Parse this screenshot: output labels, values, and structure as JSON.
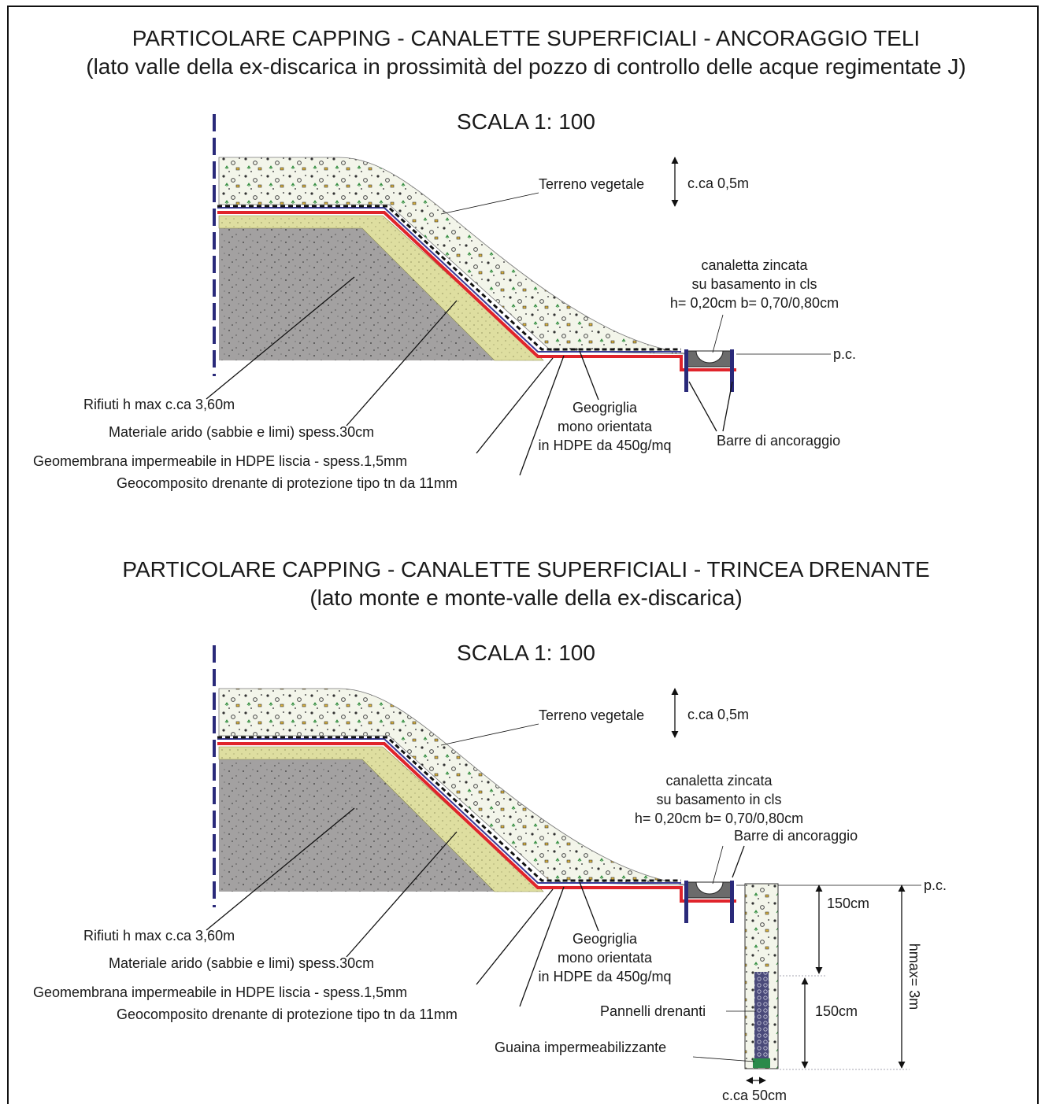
{
  "sections": [
    {
      "title": "PARTICOLARE CAPPING - CANALETTE SUPERFICIALI - ANCORAGGIO TELI",
      "subtitle": "(lato valle della ex-discarica in prossimità del pozzo di controllo delle acque regimentate J)",
      "scale": "SCALA 1: 100",
      "topsoil": "Terreno vegetale",
      "topsoil_thickness": "c.ca 0,5m",
      "channel": [
        "canaletta zincata",
        "su basamento in cls",
        "h= 0,20cm b= 0,70/0,80cm"
      ],
      "ground_level": "p.c.",
      "waste": "Rifiuti h max c.ca 3,60m",
      "sand": "Materiale arido (sabbie e limi) spess.30cm",
      "geomembrane": "Geomembrana impermeabile in HDPE liscia - spess.1,5mm",
      "geocomposite": "Geocomposito drenante di protezione tipo tn da 11mm",
      "geogrid": [
        "Geogriglia",
        "mono orientata",
        "in HDPE da 450g/mq"
      ],
      "anchor_bars": "Barre di ancoraggio"
    },
    {
      "title": "PARTICOLARE CAPPING - CANALETTE SUPERFICIALI - TRINCEA DRENANTE",
      "subtitle": "(lato monte e monte-valle della ex-discarica)",
      "scale": "SCALA 1: 100",
      "topsoil": "Terreno vegetale",
      "topsoil_thickness": "c.ca 0,5m",
      "channel": [
        "canaletta zincata",
        "su basamento in cls",
        "h= 0,20cm b= 0,70/0,80cm"
      ],
      "ground_level": "p.c.",
      "waste": "Rifiuti h max c.ca 3,60m",
      "sand": "Materiale arido (sabbie e limi) spess.30cm",
      "geomembrane": "Geomembrana impermeabile in HDPE liscia - spess.1,5mm",
      "geocomposite": "Geocomposito drenante di protezione tipo tn da 11mm",
      "geogrid": [
        "Geogriglia",
        "mono orientata",
        "in HDPE da 450g/mq"
      ],
      "anchor_bars": "Barre di ancoraggio",
      "trench": {
        "upper_depth": "150cm",
        "lower_depth": "150cm",
        "max_depth": "hmax= 3m",
        "panels": "Pannelli drenanti",
        "liner": "Guaina impermeabilizzante",
        "width": "c.ca 50cm"
      }
    }
  ]
}
